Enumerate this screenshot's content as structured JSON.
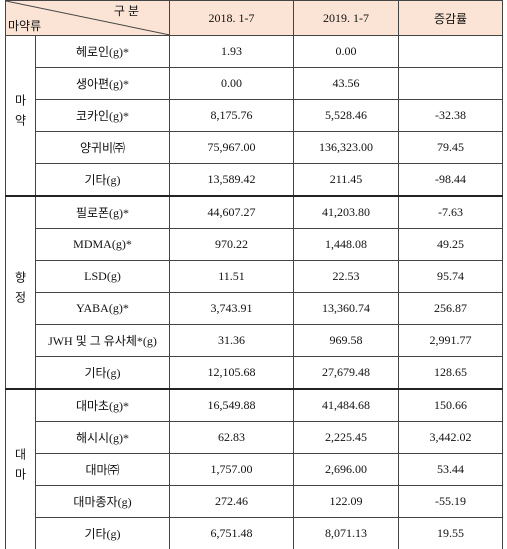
{
  "header": {
    "corner_top": "구 분",
    "corner_bottom": "마약류",
    "columns": [
      "2018. 1-7",
      "2019. 1-7",
      "증감률"
    ]
  },
  "groups": [
    {
      "label": "마약",
      "rows": [
        [
          "헤로인(g)*",
          "1.93",
          "0.00",
          null
        ],
        [
          "생아편(g)*",
          "0.00",
          "43.56",
          null
        ],
        [
          "코카인(g)*",
          "8,175.76",
          "5,528.46",
          "-32.38"
        ],
        [
          "양귀비㈜",
          "75,967.00",
          "136,323.00",
          "79.45"
        ],
        [
          "기타(g)",
          "13,589.42",
          "211.45",
          "-98.44"
        ]
      ]
    },
    {
      "label": "향정",
      "rows": [
        [
          "필로폰(g)*",
          "44,607.27",
          "41,203.80",
          "-7.63"
        ],
        [
          "MDMA(g)*",
          "970.22",
          "1,448.08",
          "49.25"
        ],
        [
          "LSD(g)",
          "11.51",
          "22.53",
          "95.74"
        ],
        [
          "YABA(g)*",
          "3,743.91",
          "13,360.74",
          "256.87"
        ],
        [
          "JWH 및 그 유사체*(g)",
          "31.36",
          "969.58",
          "2,991.77"
        ],
        [
          "기타(g)",
          "12,105.68",
          "27,679.48",
          "128.65"
        ]
      ]
    },
    {
      "label": "대마",
      "rows": [
        [
          "대마초(g)*",
          "16,549.88",
          "41,484.68",
          "150.66"
        ],
        [
          "해시시(g)*",
          "62.83",
          "2,225.45",
          "3,442.02"
        ],
        [
          "대마㈜",
          "1,757.00",
          "2,696.00",
          "53.44"
        ],
        [
          "대마종자(g)",
          "272.46",
          "122.09",
          "-55.19"
        ],
        [
          "기타(g)",
          "6,751.48",
          "8,071.13",
          "19.55"
        ]
      ]
    }
  ]
}
